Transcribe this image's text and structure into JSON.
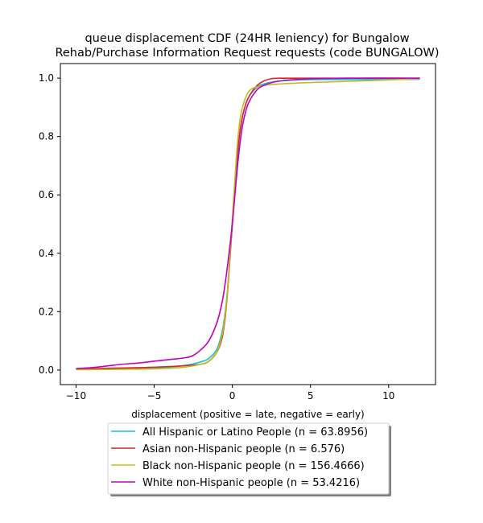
{
  "chart_data": {
    "type": "line",
    "title_lines": [
      "queue displacement CDF (24HR leniency) for Bungalow",
      "Rehab/Purchase Information Request  requests (code BUNGALOW)"
    ],
    "xlabel": "displacement (positive = late, negative = early)",
    "ylabel": "",
    "xlim": [
      -11,
      13
    ],
    "ylim": [
      -0.05,
      1.05
    ],
    "xticks": [
      -10,
      -5,
      0,
      5,
      10
    ],
    "yticks": [
      0.0,
      0.2,
      0.4,
      0.6,
      0.8,
      1.0
    ],
    "xtick_labels": [
      "−10",
      "−5",
      "0",
      "5",
      "10"
    ],
    "ytick_labels": [
      "0.0",
      "0.2",
      "0.4",
      "0.6",
      "0.8",
      "1.0"
    ],
    "grid": false,
    "legend_position": "below-plot",
    "series": [
      {
        "name": "All Hispanic or Latino People (n = 63.8956)",
        "color": "#17becf",
        "x": [
          -10,
          -8,
          -6,
          -4,
          -3,
          -2,
          -1.5,
          -1,
          -0.7,
          -0.5,
          -0.3,
          0,
          0.3,
          0.5,
          0.7,
          1,
          1.5,
          2,
          3,
          5,
          8,
          12
        ],
        "y": [
          0.003,
          0.004,
          0.006,
          0.01,
          0.016,
          0.028,
          0.04,
          0.07,
          0.12,
          0.18,
          0.28,
          0.5,
          0.72,
          0.82,
          0.88,
          0.93,
          0.965,
          0.98,
          0.99,
          0.995,
          0.995,
          0.996
        ]
      },
      {
        "name": "Asian non-Hispanic people (n = 6.576)",
        "color": "#d62728",
        "x": [
          -10,
          -8,
          -6,
          -4,
          -3,
          -2,
          -1.5,
          -1,
          -0.7,
          -0.5,
          -0.3,
          0,
          0.3,
          0.5,
          0.7,
          1,
          1.5,
          2,
          2.5,
          3,
          5,
          8,
          12
        ],
        "y": [
          0.003,
          0.006,
          0.008,
          0.012,
          0.015,
          0.02,
          0.03,
          0.06,
          0.1,
          0.16,
          0.27,
          0.5,
          0.72,
          0.82,
          0.88,
          0.93,
          0.97,
          0.99,
          0.998,
          1.0,
          1.0,
          1.0,
          1.0
        ]
      },
      {
        "name": "Black non-Hispanic people (n = 156.4666)",
        "color": "#bcbd22",
        "x": [
          -10,
          -8,
          -6,
          -4,
          -3,
          -2,
          -1.5,
          -1,
          -0.7,
          -0.5,
          -0.3,
          0,
          0.3,
          0.5,
          0.7,
          1,
          1.3,
          1.6,
          2,
          3,
          5,
          8,
          12
        ],
        "y": [
          0.001,
          0.002,
          0.003,
          0.006,
          0.01,
          0.02,
          0.03,
          0.06,
          0.11,
          0.17,
          0.28,
          0.52,
          0.76,
          0.86,
          0.91,
          0.95,
          0.965,
          0.97,
          0.975,
          0.98,
          0.985,
          0.99,
          0.998
        ]
      },
      {
        "name": "White non-Hispanic people (n = 53.4216)",
        "color": "#bf00bf",
        "x": [
          -10,
          -9,
          -8,
          -7,
          -6,
          -5,
          -4,
          -3,
          -2.5,
          -2,
          -1.5,
          -1,
          -0.7,
          -0.5,
          -0.3,
          0,
          0.3,
          0.5,
          0.7,
          1,
          1.5,
          2,
          3,
          5,
          8,
          12
        ],
        "y": [
          0.005,
          0.008,
          0.014,
          0.02,
          0.024,
          0.03,
          0.036,
          0.042,
          0.05,
          0.07,
          0.1,
          0.16,
          0.22,
          0.28,
          0.36,
          0.5,
          0.68,
          0.78,
          0.85,
          0.91,
          0.955,
          0.975,
          0.99,
          0.998,
          1.0,
          1.0
        ]
      }
    ]
  }
}
